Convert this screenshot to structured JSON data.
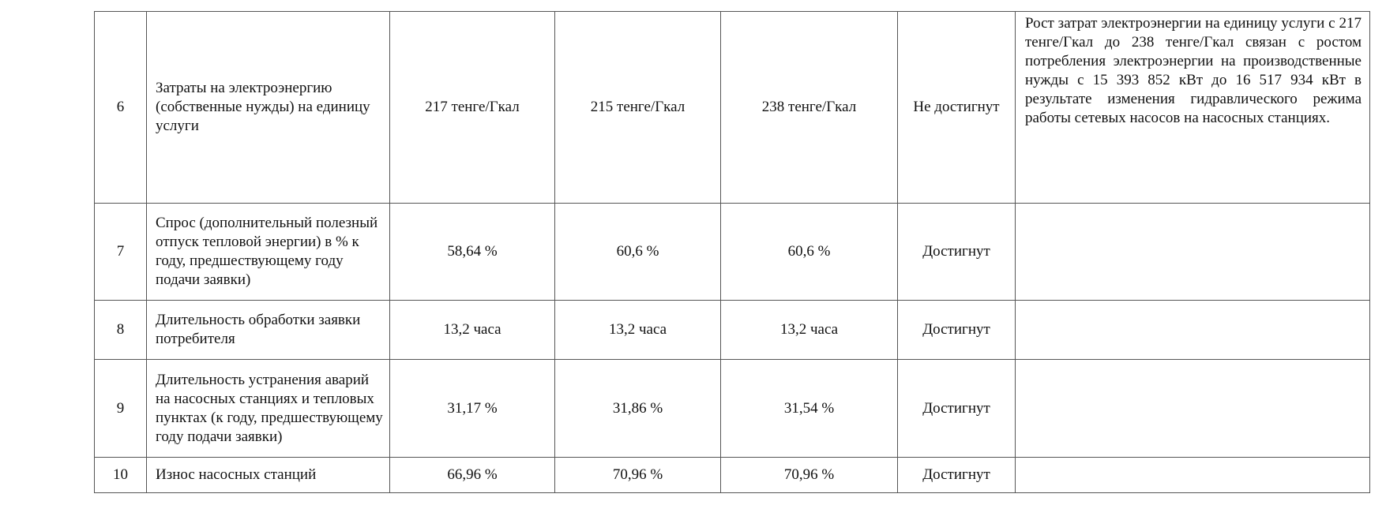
{
  "table": {
    "rows": [
      {
        "number": "6",
        "indicator": "Затраты на электроэнергию (собственные нужды) на единицу услуги",
        "plan": "217 тенге/Гкал",
        "previous": "215 тенге/Гкал",
        "actual": "238 тенге/Гкал",
        "status": "Не достигнут",
        "comment": "Рост затрат электроэнергии на единицу услуги с 217 тенге/Гкал до 238 тенге/Гкал связан с ростом потребления электроэнергии на производственные нужды с 15 393 852 кВт до 16 517 934 кВт в результате изменения гидравлического режима работы сетевых насосов на насосных станциях."
      },
      {
        "number": "7",
        "indicator": "Спрос (дополнительный полезный отпуск тепловой энергии) в % к году, предшествующему году подачи заявки)",
        "plan": "58,64 %",
        "previous": "60,6 %",
        "actual": "60,6 %",
        "status": "Достигнут"
      },
      {
        "number": "8",
        "indicator": "Длительность обработки заявки потребителя",
        "plan": "13,2 часа",
        "previous": "13,2 часа",
        "actual": "13,2 часа",
        "status": "Достигнут"
      },
      {
        "number": "9",
        "indicator": "Длительность устранения аварий на насосных станциях и тепловых пунктах (к году, предшествующему году подачи заявки)",
        "plan": "31,17 %",
        "previous": "31,86 %",
        "actual": "31,54 %",
        "status": "Достигнут"
      },
      {
        "number": "10",
        "indicator": "Износ насосных станций",
        "plan": "66,96 %",
        "previous": "70,96 %",
        "actual": "70,96 %",
        "status": "Достигнут"
      }
    ]
  }
}
